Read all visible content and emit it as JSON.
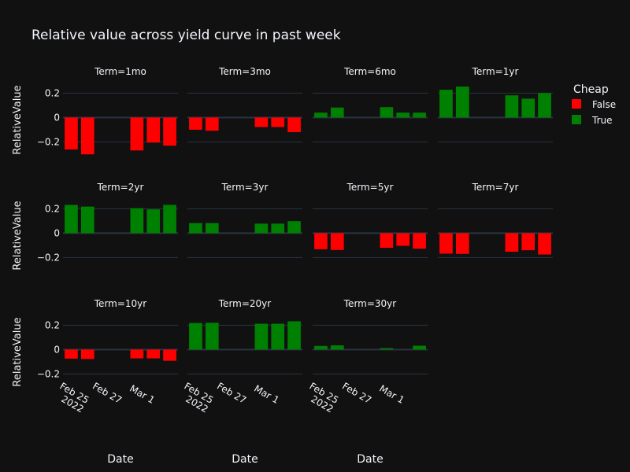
{
  "chart_data": {
    "type": "bar",
    "title": "Relative value across yield curve in past week",
    "xlabel": "Date",
    "ylabel": "RelativeValue",
    "ylim": [
      -0.32,
      0.28
    ],
    "yticks": [
      {
        "value": 0.2,
        "label": "0.2"
      },
      {
        "value": 0,
        "label": "0"
      },
      {
        "value": -0.2,
        "label": "−0.2"
      }
    ],
    "dates": [
      "2022-02-24",
      "2022-02-25",
      "2022-02-26",
      "2022-02-27",
      "2022-02-28",
      "2022-03-01",
      "2022-03-02"
    ],
    "xticks": [
      {
        "date": "2022-02-25",
        "lines": [
          "Feb 25",
          "2022"
        ]
      },
      {
        "date": "2022-02-27",
        "lines": [
          "Feb 27"
        ]
      },
      {
        "date": "2022-03-01",
        "lines": [
          "Mar 1"
        ]
      }
    ],
    "legend": {
      "title": "Cheap",
      "placement": "right",
      "items": [
        {
          "name": "False",
          "color": "#ff0000"
        },
        {
          "name": "True",
          "color": "#008000"
        }
      ]
    },
    "colors": {
      "False": "#ff0000",
      "True": "#008000",
      "background": "#111111",
      "grid": "#283442",
      "zeroline": "#283442",
      "text": "#f2f5fa"
    },
    "facets": [
      {
        "label": "Term=1mo",
        "values": [
          -0.262,
          -0.302,
          null,
          null,
          -0.27,
          -0.205,
          -0.231
        ]
      },
      {
        "label": "Term=3mo",
        "values": [
          -0.1,
          -0.108,
          null,
          null,
          -0.078,
          -0.078,
          -0.12
        ]
      },
      {
        "label": "Term=6mo",
        "values": [
          0.04,
          0.082,
          null,
          null,
          0.085,
          0.04,
          0.04
        ]
      },
      {
        "label": "Term=1yr",
        "values": [
          0.228,
          0.254,
          null,
          null,
          0.182,
          0.155,
          0.2
        ]
      },
      {
        "label": "Term=2yr",
        "values": [
          0.232,
          0.218,
          null,
          null,
          0.205,
          0.195,
          0.232
        ]
      },
      {
        "label": "Term=3yr",
        "values": [
          0.083,
          0.083,
          null,
          null,
          0.078,
          0.078,
          0.098
        ]
      },
      {
        "label": "Term=5yr",
        "values": [
          -0.132,
          -0.138,
          null,
          null,
          -0.12,
          -0.104,
          -0.127
        ]
      },
      {
        "label": "Term=7yr",
        "values": [
          -0.168,
          -0.17,
          null,
          null,
          -0.152,
          -0.14,
          -0.175
        ]
      },
      {
        "label": "Term=10yr",
        "values": [
          -0.074,
          -0.077,
          null,
          null,
          -0.072,
          -0.072,
          -0.092
        ]
      },
      {
        "label": "Term=20yr",
        "values": [
          0.218,
          0.22,
          null,
          null,
          0.212,
          0.212,
          0.232
        ]
      },
      {
        "label": "Term=30yr",
        "values": [
          0.03,
          0.035,
          null,
          null,
          0.012,
          null,
          0.032
        ]
      }
    ]
  }
}
